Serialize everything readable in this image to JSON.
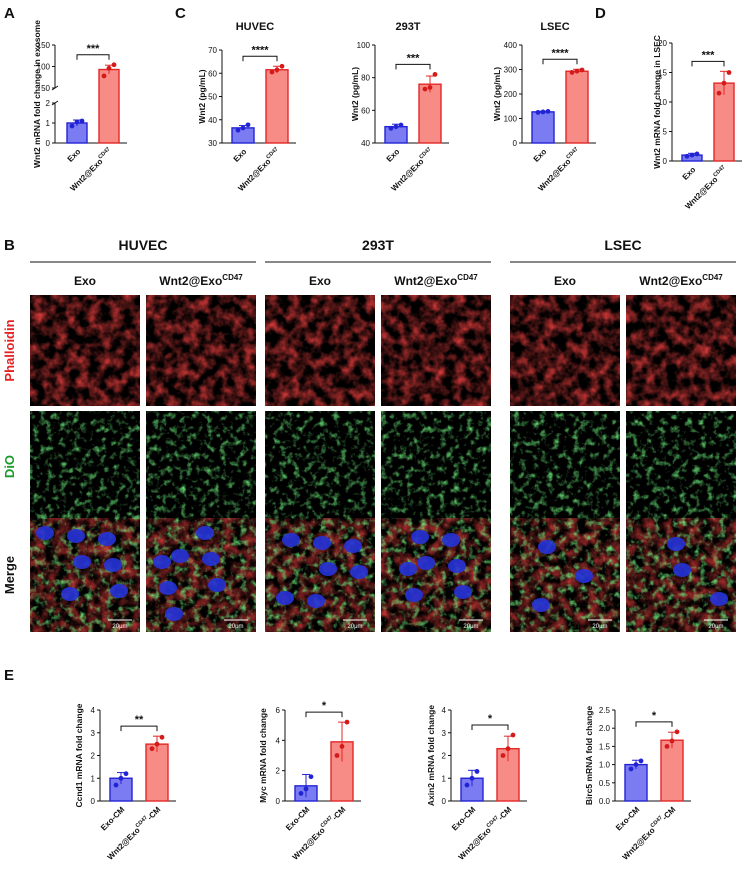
{
  "colors": {
    "exo_fill": "#7b7cf2",
    "exo_stroke": "#2323d6",
    "exo_dot": "#2323d6",
    "wnt_fill": "#f78b86",
    "wnt_stroke": "#e42727",
    "wnt_dot": "#d61a1a",
    "phalloidin": "#e32222",
    "dio": "#1a9b2a",
    "merge": "#111111"
  },
  "panels": {
    "A": "A",
    "B": "B",
    "C": "C",
    "D": "D",
    "E": "E"
  },
  "labels": {
    "exo": "Exo",
    "wnt_prefix": "Wnt2@Exo",
    "cd47": "CD47",
    "exo_cm": "Exo-CM",
    "cm_suffix": "-CM"
  },
  "microscopy": {
    "groups": [
      "HUVEC",
      "293T",
      "LSEC"
    ],
    "column_titles": [
      "Exo",
      "Wnt2@Exo"
    ],
    "column_sup": "CD47",
    "rows": [
      "Phalloidin",
      "DiO",
      "Merge"
    ],
    "scale_bar": "20μm"
  },
  "chart_data": [
    {
      "id": "A",
      "type": "bar",
      "broken_axis": true,
      "title": "",
      "ylabel": "Wnt2 mRNA fold change in exosome",
      "categories": [
        "Exo",
        "Wnt2@Exo CD47"
      ],
      "values": [
        1.0,
        93
      ],
      "errors": [
        0.15,
        10
      ],
      "points": [
        [
          0.85,
          1.05,
          1.1
        ],
        [
          78,
          96,
          104
        ]
      ],
      "lower_range": [
        0,
        2
      ],
      "upper_range": [
        50,
        150
      ],
      "lower_ticks": [
        "0",
        "1",
        "2"
      ],
      "upper_ticks": [
        "50",
        "100",
        "150"
      ],
      "significance": "***"
    },
    {
      "id": "C1",
      "type": "bar",
      "title": "HUVEC",
      "ylabel": "Wnt2 (pg/mL)",
      "categories": [
        "Exo",
        "Wnt2@Exo CD47"
      ],
      "values": [
        36.5,
        61.5
      ],
      "errors": [
        1.0,
        1.5
      ],
      "points": [
        [
          35.5,
          36.5,
          37.8
        ],
        [
          60.5,
          61.5,
          63
        ]
      ],
      "ylim": [
        30,
        70
      ],
      "ticks": [
        "30",
        "40",
        "50",
        "60",
        "70"
      ],
      "significance": "****"
    },
    {
      "id": "C2",
      "type": "bar",
      "title": "293T",
      "ylabel": "Wnt2 (pg/mL)",
      "categories": [
        "Exo",
        "Wnt2@Exo CD47"
      ],
      "values": [
        50,
        76
      ],
      "errors": [
        1.5,
        5
      ],
      "points": [
        [
          49,
          50,
          51
        ],
        [
          73,
          74,
          82
        ]
      ],
      "ylim": [
        40,
        100
      ],
      "ticks": [
        "40",
        "60",
        "80",
        "100"
      ],
      "significance": "***"
    },
    {
      "id": "C3",
      "type": "bar",
      "title": "LSEC",
      "ylabel": "Wnt2 (pg/mL)",
      "categories": [
        "Exo",
        "Wnt2@Exo CD47"
      ],
      "values": [
        127,
        293
      ],
      "errors": [
        3,
        8
      ],
      "points": [
        [
          125,
          127,
          129
        ],
        [
          288,
          293,
          298
        ]
      ],
      "ylim": [
        0,
        400
      ],
      "ticks": [
        "0",
        "100",
        "200",
        "300",
        "400"
      ],
      "significance": "****"
    },
    {
      "id": "D",
      "type": "bar",
      "title": "",
      "ylabel": "Wnt2 mRNA fold change in LSEC",
      "categories": [
        "Exo",
        "Wnt2@Exo CD47"
      ],
      "values": [
        1.0,
        13.2
      ],
      "errors": [
        0.3,
        2.0
      ],
      "points": [
        [
          0.8,
          1.0,
          1.2
        ],
        [
          11.5,
          13.2,
          15
        ]
      ],
      "ylim": [
        0,
        20
      ],
      "ticks": [
        "0",
        "5",
        "10",
        "15",
        "20"
      ],
      "significance": "***"
    },
    {
      "id": "E1",
      "type": "bar",
      "title": "",
      "ylabel": "Ccnd1 mRNA fold change",
      "categories": [
        "Exo-CM",
        "Wnt2@Exo CD47-CM"
      ],
      "values": [
        1.0,
        2.5
      ],
      "errors": [
        0.25,
        0.35
      ],
      "points": [
        [
          0.7,
          1.0,
          1.2
        ],
        [
          2.3,
          2.5,
          2.8
        ]
      ],
      "ylim": [
        0,
        4
      ],
      "ticks": [
        "0",
        "1",
        "2",
        "3",
        "4"
      ],
      "significance": "**"
    },
    {
      "id": "E2",
      "type": "bar",
      "title": "",
      "ylabel": "Myc mRNA fold change",
      "categories": [
        "Exo-CM",
        "Wnt2@Exo CD47-CM"
      ],
      "values": [
        1.0,
        3.9
      ],
      "errors": [
        0.75,
        1.3
      ],
      "points": [
        [
          0.5,
          0.8,
          1.6
        ],
        [
          3.0,
          3.6,
          5.2
        ]
      ],
      "ylim": [
        0,
        6
      ],
      "ticks": [
        "0",
        "2",
        "4",
        "6"
      ],
      "significance": "*"
    },
    {
      "id": "E3",
      "type": "bar",
      "title": "",
      "ylabel": "Axin2 mRNA fold change",
      "categories": [
        "Exo-CM",
        "Wnt2@Exo CD47-CM"
      ],
      "values": [
        1.0,
        2.3
      ],
      "errors": [
        0.35,
        0.55
      ],
      "points": [
        [
          0.7,
          1.0,
          1.3
        ],
        [
          2.0,
          2.3,
          2.9
        ]
      ],
      "ylim": [
        0,
        4
      ],
      "ticks": [
        "0",
        "1",
        "2",
        "3",
        "4"
      ],
      "significance": "*"
    },
    {
      "id": "E4",
      "type": "bar",
      "title": "",
      "ylabel": "Birc5 mRNA fold change",
      "categories": [
        "Exo-CM",
        "Wnt2@Exo CD47-CM"
      ],
      "values": [
        1.0,
        1.67
      ],
      "errors": [
        0.12,
        0.22
      ],
      "points": [
        [
          0.88,
          1.0,
          1.1
        ],
        [
          1.5,
          1.65,
          1.9
        ]
      ],
      "ylim": [
        0,
        2.5
      ],
      "ticks": [
        "0.0",
        "0.5",
        "1.0",
        "1.5",
        "2.0",
        "2.5"
      ],
      "significance": "*"
    }
  ]
}
